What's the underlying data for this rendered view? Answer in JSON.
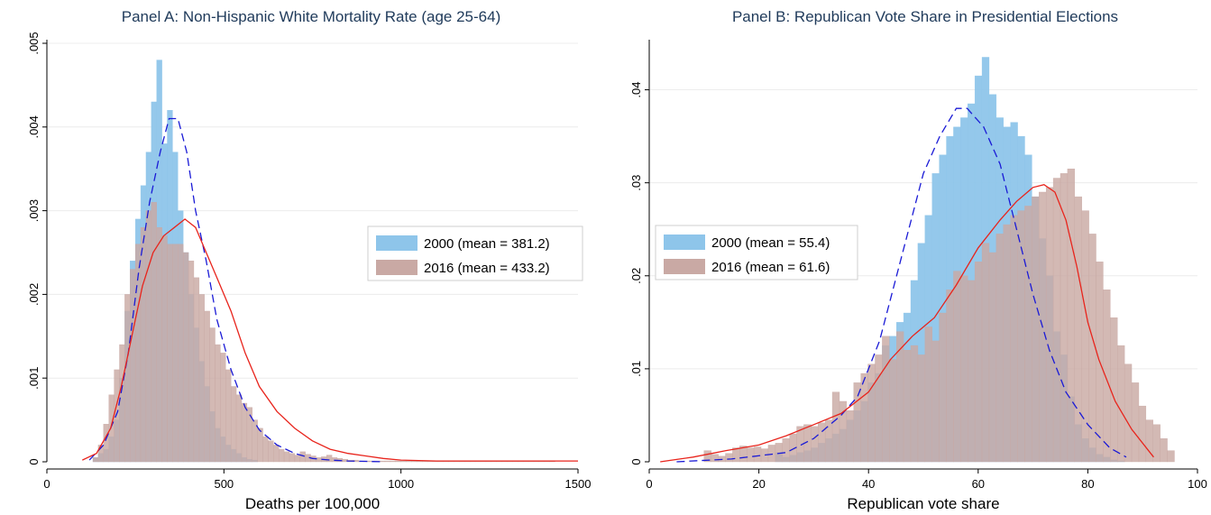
{
  "chart_data": [
    {
      "type": "histogram",
      "title": "Panel A: Non-Hispanic White Mortality Rate (age 25-64)",
      "xlabel": "Deaths per 100,000",
      "ylabel": "",
      "xlim": [
        0,
        1500
      ],
      "ylim": [
        0,
        0.005
      ],
      "x_ticks": [
        0,
        500,
        1000,
        1500
      ],
      "x_tick_labels": [
        "0",
        "500",
        "1000",
        "1500"
      ],
      "y_ticks": [
        0,
        0.001,
        0.002,
        0.003,
        0.004,
        0.005
      ],
      "y_tick_labels": [
        "0",
        ".001",
        ".002",
        ".003",
        ".004",
        ".005"
      ],
      "grid": "horizontal",
      "legend_position": "right",
      "colors": {
        "series_2000": "#8ec5ea",
        "series_2016": "#c9a9a4",
        "curve_2000": "#1a1ad6",
        "curve_2016": "#e8241c",
        "title": "#1f3a5a"
      },
      "series": [
        {
          "name": "2000 (mean = 381.2)",
          "bin_start": 100,
          "bin_width": 15,
          "values": [
            0,
            0,
            5e-05,
            0.0001,
            0.00015,
            0.0003,
            0.0005,
            0.001,
            0.0018,
            0.0024,
            0.0029,
            0.0033,
            0.0037,
            0.0043,
            0.0048,
            0.0038,
            0.0042,
            0.0037,
            0.003,
            0.0025,
            0.002,
            0.0016,
            0.0012,
            0.0009,
            0.0006,
            0.0004,
            0.0003,
            0.0002,
            0.00015,
            0.0001,
            5e-05,
            3e-05,
            2e-05
          ]
        },
        {
          "name": "2016 (mean = 433.2)",
          "bin_start": 100,
          "bin_width": 15,
          "values": [
            0,
            0,
            5e-05,
            0.0002,
            0.00045,
            0.0008,
            0.0011,
            0.0014,
            0.002,
            0.0023,
            0.0026,
            0.0028,
            0.003,
            0.0031,
            0.0028,
            0.0027,
            0.0026,
            0.0026,
            0.0026,
            0.0025,
            0.0024,
            0.0022,
            0.002,
            0.0018,
            0.0016,
            0.0014,
            0.0013,
            0.0011,
            0.0009,
            0.0008,
            0.0007,
            0.00065,
            0.0005,
            0.0004,
            0.0003,
            0.00025,
            0.0002,
            0.00015,
            0.00012,
            0.0001,
            8e-05,
            0.00012,
            9e-05,
            7e-05,
            5e-05,
            6e-05,
            8e-05,
            5e-05,
            4e-05,
            3e-05,
            2e-05,
            2e-05,
            1e-05,
            1e-05,
            1e-05,
            1e-05,
            1e-05,
            1e-05,
            1e-05,
            1e-05,
            1e-05,
            1e-05,
            1e-05,
            1e-05,
            1e-05,
            1e-05,
            1e-05,
            1e-05,
            1e-05,
            1e-05,
            1e-05,
            1e-05,
            1e-05,
            1e-05,
            1e-05,
            1e-05,
            1e-05,
            1e-05,
            1e-05,
            1e-05,
            1e-05,
            1e-05,
            1e-05,
            1e-05,
            1e-05,
            1e-05,
            1e-05,
            1e-05,
            1e-05
          ]
        }
      ],
      "curves": [
        {
          "series": "2000 (mean = 381.2)",
          "style": "dashed",
          "x": [
            120,
            160,
            200,
            230,
            260,
            290,
            320,
            345,
            370,
            395,
            420,
            450,
            480,
            520,
            560,
            600,
            650,
            700,
            750,
            800,
            850,
            900,
            950
          ],
          "y": [
            2e-05,
            0.0002,
            0.0006,
            0.0013,
            0.0023,
            0.0031,
            0.0037,
            0.0041,
            0.0041,
            0.0037,
            0.003,
            0.0024,
            0.0017,
            0.0011,
            0.00065,
            0.00038,
            0.0002,
            0.0001,
            4e-05,
            2e-05,
            1e-05,
            5e-06,
            0
          ]
        },
        {
          "series": "2016 (mean = 433.2)",
          "style": "solid",
          "x": [
            100,
            140,
            180,
            210,
            240,
            270,
            300,
            330,
            360,
            390,
            420,
            450,
            480,
            520,
            560,
            600,
            650,
            700,
            750,
            800,
            850,
            900,
            950,
            1000,
            1100,
            1200,
            1300,
            1400,
            1500
          ],
          "y": [
            2e-05,
            0.0001,
            0.0004,
            0.0009,
            0.0015,
            0.0021,
            0.0025,
            0.0027,
            0.0028,
            0.0029,
            0.0028,
            0.0025,
            0.0022,
            0.0018,
            0.0013,
            0.0009,
            0.0006,
            0.0004,
            0.00025,
            0.00015,
            0.0001,
            7e-05,
            4e-05,
            2e-05,
            1e-05,
            1e-05,
            1e-05,
            1e-05,
            1e-05
          ]
        }
      ]
    },
    {
      "type": "histogram",
      "title": "Panel B: Republican Vote Share in Presidential Elections",
      "xlabel": "Republican vote share",
      "ylabel": "",
      "xlim": [
        0,
        100
      ],
      "ylim": [
        0,
        0.045
      ],
      "x_ticks": [
        0,
        20,
        40,
        60,
        80,
        100
      ],
      "x_tick_labels": [
        "0",
        "20",
        "40",
        "60",
        "80",
        "100"
      ],
      "y_ticks": [
        0,
        0.01,
        0.02,
        0.03,
        0.04
      ],
      "y_tick_labels": [
        "0",
        ".01",
        ".02",
        ".03",
        ".04"
      ],
      "grid": "horizontal",
      "legend_position": "left",
      "colors": {
        "series_2000": "#8ec5ea",
        "series_2016": "#c9a9a4",
        "curve_2000": "#1a1ad6",
        "curve_2016": "#e8241c",
        "title": "#1f3a5a"
      },
      "series": [
        {
          "name": "2000 (mean = 55.4)",
          "bin_start": 10,
          "bin_width": 1.3,
          "values": [
            0,
            0,
            0,
            0,
            0,
            0,
            0,
            0,
            0,
            0,
            0.001,
            0.0005,
            0.0007,
            0.001,
            0.0012,
            0.0015,
            0.002,
            0.0025,
            0.003,
            0.0035,
            0.0045,
            0.0055,
            0.0065,
            0.0085,
            0.0095,
            0.0125,
            0.0135,
            0.015,
            0.016,
            0.0195,
            0.0235,
            0.0265,
            0.031,
            0.033,
            0.035,
            0.036,
            0.037,
            0.0385,
            0.0415,
            0.0435,
            0.0395,
            0.037,
            0.036,
            0.0365,
            0.035,
            0.033,
            0.0285,
            0.024,
            0.02,
            0.014,
            0.0115,
            0.007,
            0.004,
            0.0025,
            0.0015,
            0.0008,
            0.0005,
            0.0002,
            0.0001
          ]
        },
        {
          "name": "2016 (mean = 61.6)",
          "bin_start": 10,
          "bin_width": 1.3,
          "values": [
            0.0012,
            0.0008,
            0.0006,
            0.0009,
            0.0015,
            0.0017,
            0.0015,
            0.0016,
            0.0014,
            0.0018,
            0.002,
            0.0025,
            0.003,
            0.0038,
            0.004,
            0.0038,
            0.0042,
            0.0045,
            0.0075,
            0.0065,
            0.0055,
            0.0085,
            0.0095,
            0.0105,
            0.0115,
            0.0135,
            0.011,
            0.014,
            0.012,
            0.0125,
            0.0115,
            0.0145,
            0.013,
            0.016,
            0.0185,
            0.0205,
            0.02,
            0.0195,
            0.0215,
            0.0235,
            0.0225,
            0.0245,
            0.0255,
            0.0265,
            0.027,
            0.0275,
            0.0285,
            0.029,
            0.0295,
            0.0305,
            0.031,
            0.0315,
            0.0285,
            0.027,
            0.0245,
            0.0215,
            0.0185,
            0.0155,
            0.0125,
            0.0105,
            0.0085,
            0.006,
            0.0045,
            0.004,
            0.0025,
            0.0012
          ]
        }
      ],
      "curves": [
        {
          "series": "2000 (mean = 55.4)",
          "style": "dashed",
          "x": [
            5,
            15,
            25,
            30,
            35,
            38,
            42,
            46,
            50,
            53,
            56,
            58,
            61,
            64,
            67,
            70,
            73,
            76,
            80,
            84,
            87
          ],
          "y": [
            0,
            0.0003,
            0.001,
            0.0025,
            0.005,
            0.007,
            0.013,
            0.022,
            0.031,
            0.035,
            0.038,
            0.038,
            0.036,
            0.032,
            0.025,
            0.018,
            0.012,
            0.0075,
            0.004,
            0.0015,
            0.0005
          ]
        },
        {
          "series": "2016 (mean = 61.6)",
          "style": "solid",
          "x": [
            2,
            8,
            14,
            20,
            25,
            30,
            35,
            40,
            44,
            48,
            52,
            56,
            60,
            64,
            67,
            70,
            72,
            74,
            76,
            78,
            80,
            82,
            85,
            88,
            92
          ],
          "y": [
            0,
            0.0005,
            0.0012,
            0.0018,
            0.0028,
            0.004,
            0.0052,
            0.0075,
            0.011,
            0.0135,
            0.0155,
            0.019,
            0.023,
            0.026,
            0.028,
            0.0295,
            0.0298,
            0.029,
            0.026,
            0.021,
            0.015,
            0.011,
            0.0065,
            0.0035,
            0.0005
          ]
        }
      ]
    }
  ]
}
